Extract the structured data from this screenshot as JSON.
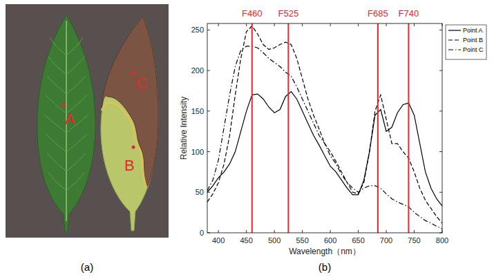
{
  "figure": {
    "captions": [
      "(a)",
      "(b)"
    ],
    "points": [
      "A",
      "B",
      "C"
    ]
  },
  "chart_data": {
    "type": "line",
    "x_label": "Wavelength（nm）",
    "y_label": "Relative Intensity",
    "xlim": [
      380,
      800
    ],
    "ylim": [
      0,
      258
    ],
    "xticks": [
      400,
      450,
      500,
      550,
      600,
      650,
      700,
      750,
      800
    ],
    "yticks": [
      0,
      50,
      100,
      150,
      200,
      250
    ],
    "grid": false,
    "legend": "right",
    "annotations": [
      {
        "x": 460,
        "label": "F460",
        "color": "#e8262b"
      },
      {
        "x": 525,
        "label": "F525",
        "color": "#e8262b"
      },
      {
        "x": 685,
        "label": "F685",
        "color": "#e8262b"
      },
      {
        "x": 740,
        "label": "F740",
        "color": "#e8262b"
      }
    ],
    "x": [
      380,
      390,
      400,
      410,
      420,
      430,
      440,
      450,
      460,
      470,
      480,
      490,
      500,
      510,
      520,
      530,
      540,
      550,
      560,
      570,
      580,
      590,
      600,
      610,
      620,
      630,
      640,
      650,
      660,
      670,
      680,
      690,
      700,
      710,
      720,
      730,
      740,
      750,
      760,
      770,
      780,
      790,
      800
    ],
    "series": [
      {
        "name": "Point A",
        "color": "#000000",
        "line_style": "solid",
        "marker": "none",
        "values": [
          50,
          58,
          68,
          75,
          85,
          100,
          125,
          150,
          170,
          171,
          165,
          155,
          148,
          152,
          168,
          174,
          165,
          150,
          135,
          120,
          108,
          95,
          82,
          75,
          65,
          55,
          47,
          47,
          65,
          100,
          145,
          152,
          125,
          130,
          148,
          158,
          160,
          145,
          110,
          75,
          55,
          42,
          33
        ]
      },
      {
        "name": "Point B",
        "color": "#000000",
        "line_style": "dashed",
        "marker": "none",
        "values": [
          38,
          48,
          62,
          85,
          120,
          170,
          215,
          248,
          255,
          245,
          232,
          226,
          228,
          232,
          235,
          232,
          215,
          190,
          165,
          145,
          128,
          110,
          100,
          88,
          75,
          62,
          50,
          48,
          62,
          100,
          150,
          170,
          140,
          110,
          110,
          100,
          92,
          75,
          55,
          40,
          30,
          20,
          12
        ]
      },
      {
        "name": "Point C",
        "color": "#000000",
        "line_style": "dashdot",
        "marker": "none",
        "values": [
          52,
          65,
          90,
          130,
          170,
          205,
          225,
          230,
          230,
          228,
          222,
          215,
          210,
          205,
          198,
          193,
          180,
          165,
          150,
          135,
          120,
          110,
          95,
          85,
          72,
          62,
          55,
          50,
          55,
          58,
          58,
          55,
          48,
          42,
          38,
          35,
          32,
          25,
          20,
          15,
          12,
          8,
          5
        ]
      }
    ]
  }
}
